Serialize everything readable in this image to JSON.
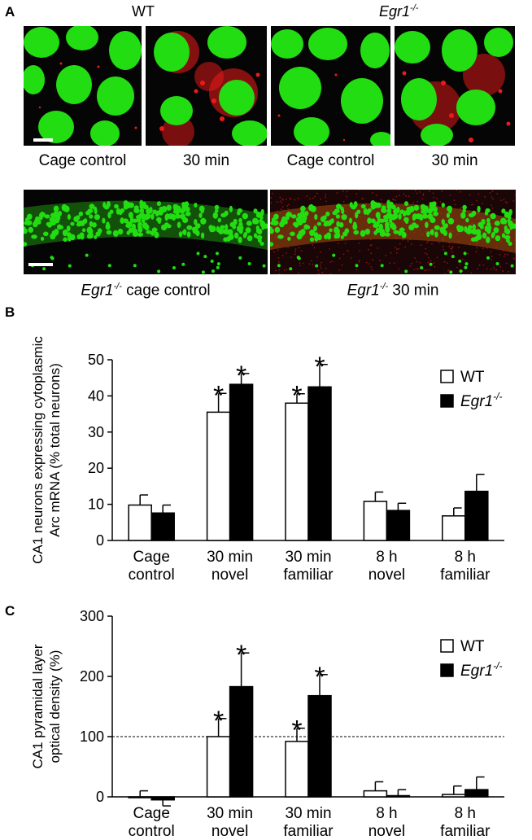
{
  "panels": {
    "a": {
      "letter": "A",
      "headers": {
        "wt": "WT",
        "egr1": "Egr1",
        "egr1_sup": "-/-"
      },
      "top_captions": [
        "Cage control",
        "30 min",
        "Cage control",
        "30 min"
      ],
      "bottom_captions": [
        {
          "prefix": "Egr1",
          "sup": "-/-",
          "text": " cage control"
        },
        {
          "prefix": "Egr1",
          "sup": "-/-",
          "text": " 30 min"
        }
      ],
      "colors": {
        "nucleus": "#22dd11",
        "arc_signal": "#ee1a1a",
        "background": "#050505"
      }
    },
    "b": {
      "letter": "B"
    },
    "c": {
      "letter": "C"
    }
  },
  "chart_data": [
    {
      "type": "bar",
      "panel": "B",
      "categories": [
        [
          "Cage",
          "control"
        ],
        [
          "30 min",
          "novel"
        ],
        [
          "30 min",
          "familiar"
        ],
        [
          "8 h",
          "novel"
        ],
        [
          "8 h",
          "familiar"
        ]
      ],
      "series": [
        {
          "name": "WT",
          "values": [
            9.8,
            35.5,
            38.0,
            10.8,
            6.8
          ],
          "errors": [
            2.8,
            5.2,
            2.6,
            2.6,
            2.2
          ],
          "fill": "#ffffff"
        },
        {
          "name": "Egr1",
          "name_sup": "-/-",
          "values": [
            7.6,
            43.2,
            42.5,
            8.3,
            13.6
          ],
          "errors": [
            2.2,
            3.0,
            6.2,
            2.0,
            4.7
          ],
          "fill": "#000000"
        }
      ],
      "significance": [
        [
          false,
          false
        ],
        [
          true,
          true
        ],
        [
          true,
          true
        ],
        [
          false,
          false
        ],
        [
          false,
          false
        ]
      ],
      "star": "*",
      "ylabel_lines": [
        "CA1 neurons expressing cytoplasmic",
        "Arc mRNA (% total neurons)"
      ],
      "yticks": [
        0,
        10,
        20,
        30,
        40,
        50
      ],
      "ylim": [
        0,
        50
      ],
      "legend_position": "top-right",
      "reference_line": null
    },
    {
      "type": "bar",
      "panel": "C",
      "categories": [
        [
          "Cage",
          "control"
        ],
        [
          "30 min",
          "novel"
        ],
        [
          "30 min",
          "familiar"
        ],
        [
          "8 h",
          "novel"
        ],
        [
          "8 h",
          "familiar"
        ]
      ],
      "series": [
        {
          "name": "WT",
          "values": [
            0,
            100,
            92,
            10,
            4
          ],
          "errors": [
            10,
            30,
            22,
            15,
            14
          ],
          "fill": "#ffffff"
        },
        {
          "name": "Egr1",
          "name_sup": "-/-",
          "values": [
            -5,
            183,
            168,
            2,
            12
          ],
          "errors": [
            10,
            56,
            35,
            10,
            21
          ],
          "fill": "#000000"
        }
      ],
      "significance": [
        [
          false,
          false
        ],
        [
          true,
          true
        ],
        [
          true,
          true
        ],
        [
          false,
          false
        ],
        [
          false,
          false
        ]
      ],
      "star": "*",
      "ylabel_lines": [
        "CA1 pyramidal layer",
        "optical density (%)"
      ],
      "yticks": [
        0,
        100,
        200,
        300
      ],
      "ylim": [
        0,
        300
      ],
      "legend_position": "top-right",
      "reference_line": 100
    }
  ]
}
